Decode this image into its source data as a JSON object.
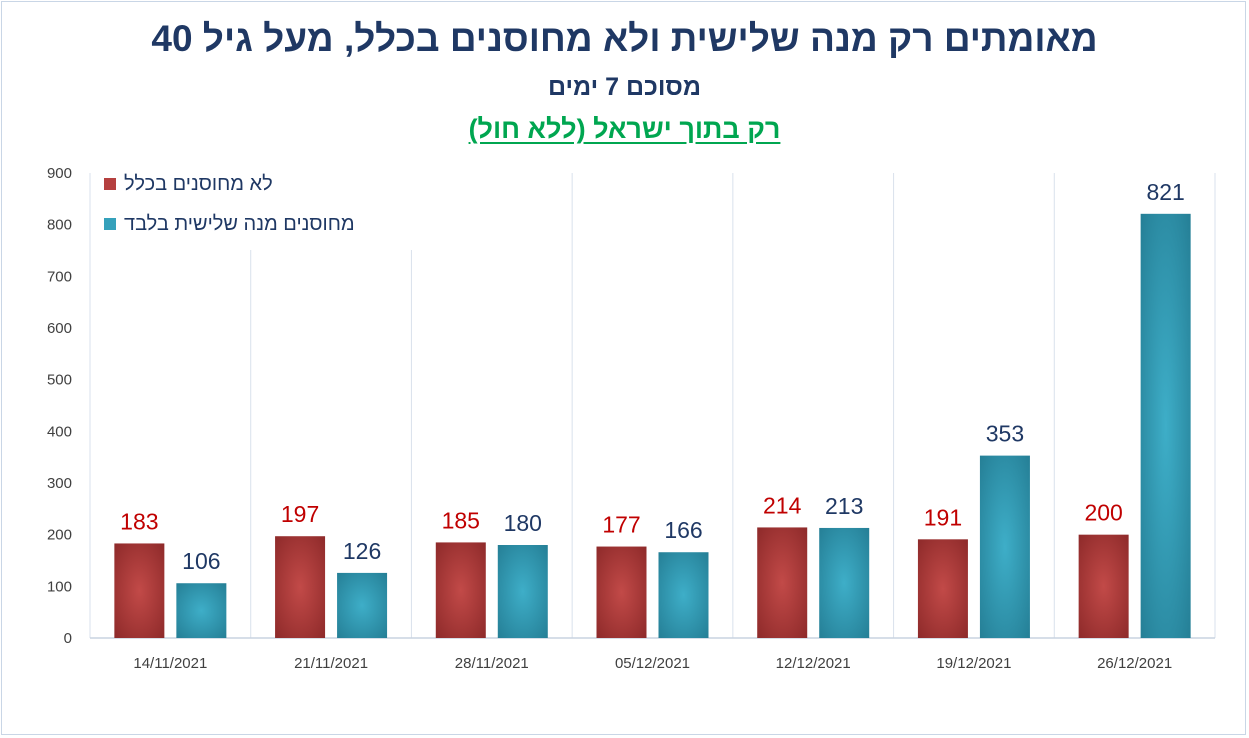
{
  "title": "מאומתים רק מנה שלישית ולא מחוסנים בכלל, מעל גיל 40",
  "subtitle": "מסוכם 7 ימים",
  "note": "רק בתוך ישראל (ללא חול)",
  "colors": {
    "not_vaccinated": "#b5403f",
    "third_dose_only": "#35a1bb",
    "label_not_vaccinated": "#c00000",
    "label_third_dose": "#1f3864",
    "axis_text": "#404040",
    "grid": "#d9e1ec"
  },
  "chart_data": {
    "type": "bar",
    "categories": [
      "14/11/2021",
      "21/11/2021",
      "28/11/2021",
      "05/12/2021",
      "12/12/2021",
      "19/12/2021",
      "26/12/2021"
    ],
    "series": [
      {
        "name": "לא מחוסנים בכלל",
        "values": [
          183,
          197,
          185,
          177,
          214,
          191,
          200
        ]
      },
      {
        "name": "מחוסנים מנה שלישית בלבד",
        "values": [
          106,
          126,
          180,
          166,
          213,
          353,
          821
        ]
      }
    ],
    "ylim": [
      0,
      900
    ],
    "yticks": [
      0,
      100,
      200,
      300,
      400,
      500,
      600,
      700,
      800,
      900
    ],
    "grid": "vertical separators between categories",
    "legend_position": "top-left",
    "data_labels": true
  }
}
